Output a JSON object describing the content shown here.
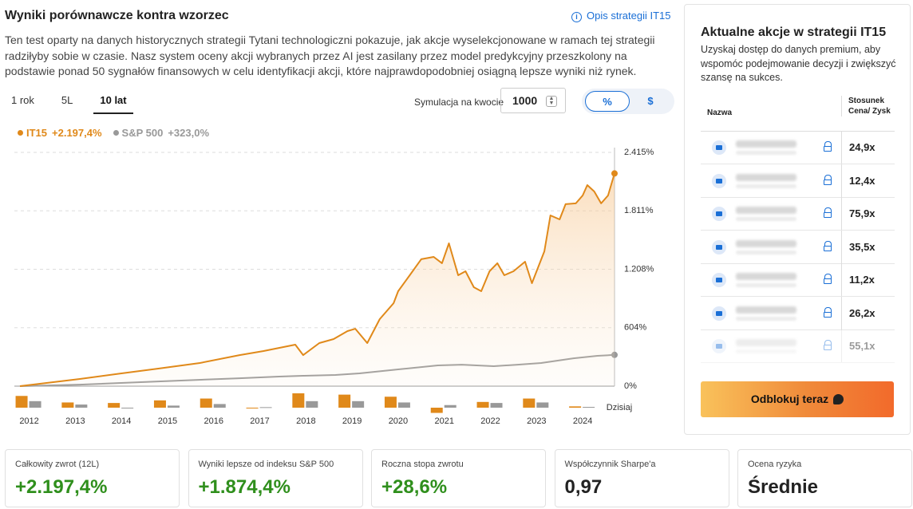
{
  "header": {
    "title": "Wyniki porównawcze kontra wzorzec",
    "link": "Opis strategii IT15",
    "link_icon": "i",
    "description": "Ten test oparty na danych historycznych strategii Tytani technologiczni pokazuje, jak akcje wyselekcjonowane w ramach tej strategii radziłyby sobie w czasie. Nasz system oceny akcji wybranych przez AI jest zasilany przez model predykcyjny przeszkolony na podstawie ponad 50 sygnałów finansowych w celu identyfikacji akcji, które najprawdopodobniej osiągną lepsze wyniki niż rynek."
  },
  "controls": {
    "tabs": [
      "1 rok",
      "5L",
      "10 lat"
    ],
    "active_tab": 2,
    "simulation_label": "Symulacja na kwocie",
    "simulation_amount": "1000",
    "units": [
      "%",
      "$"
    ]
  },
  "chart_data": {
    "type": "line",
    "series": [
      {
        "name": "IT15",
        "legend_value": "+2.197,4%",
        "color": "#e0891a",
        "x": [
          2011.8,
          2013.1,
          2014.0,
          2014.8,
          2015.7,
          2016.56,
          2017.08,
          2017.77,
          2017.94,
          2018.29,
          2018.6,
          2018.9,
          2019.07,
          2019.33,
          2019.6,
          2019.9,
          2020.0,
          2020.25,
          2020.5,
          2020.77,
          2020.95,
          2021.1,
          2021.3,
          2021.46,
          2021.64,
          2021.8,
          2021.98,
          2022.15,
          2022.3,
          2022.5,
          2022.75,
          2022.9,
          2023.17,
          2023.3,
          2023.5,
          2023.63,
          2023.85,
          2024.0,
          2024.1,
          2024.25,
          2024.4,
          2024.55,
          2024.69
        ],
        "values": [
          0,
          74,
          132,
          181,
          239,
          321,
          363,
          429,
          321,
          445,
          486,
          569,
          593,
          445,
          692,
          857,
          981,
          1146,
          1311,
          1335,
          1270,
          1475,
          1146,
          1187,
          1022,
          981,
          1187,
          1270,
          1146,
          1187,
          1286,
          1063,
          1393,
          1764,
          1723,
          1880,
          1888,
          1970,
          2077,
          2011,
          1888,
          1970,
          2197.4
        ]
      },
      {
        "name": "S&P 500",
        "legend_value": "+323,0%",
        "color": "#999999",
        "x": [
          2011.8,
          2013.1,
          2014.8,
          2016.56,
          2017.42,
          2017.94,
          2018.64,
          2019.16,
          2020.0,
          2020.86,
          2021.38,
          2022.07,
          2022.59,
          2023.1,
          2023.8,
          2024.32,
          2024.69
        ],
        "values": [
          0,
          16,
          49,
          82,
          99,
          107,
          115,
          132,
          173,
          214,
          222,
          206,
          222,
          239,
          288,
          313,
          323
        ]
      }
    ],
    "xlim": [
      2011.8,
      2024.69
    ],
    "xticks": [
      2012,
      2013,
      2014,
      2015,
      2016,
      2017,
      2018,
      2019,
      2020,
      2021,
      2022,
      2023,
      2024,
      {
        "value": 2024.69,
        "label": "Dzisiaj"
      }
    ],
    "ylim": [
      0,
      2415
    ],
    "yticks": [
      {
        "value": 0,
        "label": "0%"
      },
      {
        "value": 604,
        "label": "604%"
      },
      {
        "value": 1208,
        "label": "1.208%"
      },
      {
        "value": 1811,
        "label": "1.811%"
      },
      {
        "value": 2415,
        "label": "2.415%"
      }
    ],
    "grid": true,
    "annual_returns": {
      "it15": [
        45,
        20,
        18,
        28,
        35,
        -3,
        55,
        50,
        42,
        -20,
        22,
        35,
        5
      ],
      "sp500": [
        25,
        12,
        0,
        8,
        14,
        2,
        25,
        25,
        20,
        10,
        18,
        20,
        3
      ]
    }
  },
  "panel": {
    "title": "Aktualne akcje w strategii IT15",
    "description": "Uzyskaj dostęp do danych premium, aby wspomóc podejmowanie decyzji i zwiększyć szansę na sukces.",
    "columns": [
      "Nazwa",
      "Stosunek Cena/ Zysk"
    ],
    "rows": [
      "24,9x",
      "12,4x",
      "75,9x",
      "35,5x",
      "11,2x",
      "26,2x",
      "55,1x"
    ],
    "button": "Odblokuj teraz"
  },
  "stats": [
    {
      "label": "Całkowity zwrot (12L)",
      "value": "+2.197,4%"
    },
    {
      "label": "Wyniki lepsze od indeksu S&P 500",
      "value": "+1.874,4%"
    },
    {
      "label": "Roczna stopa zwrotu",
      "value": "+28,6%"
    },
    {
      "label": "Współczynnik Sharpe'a",
      "value": "0,97"
    },
    {
      "label": "Ocena ryzyka",
      "value": "Średnie"
    }
  ]
}
